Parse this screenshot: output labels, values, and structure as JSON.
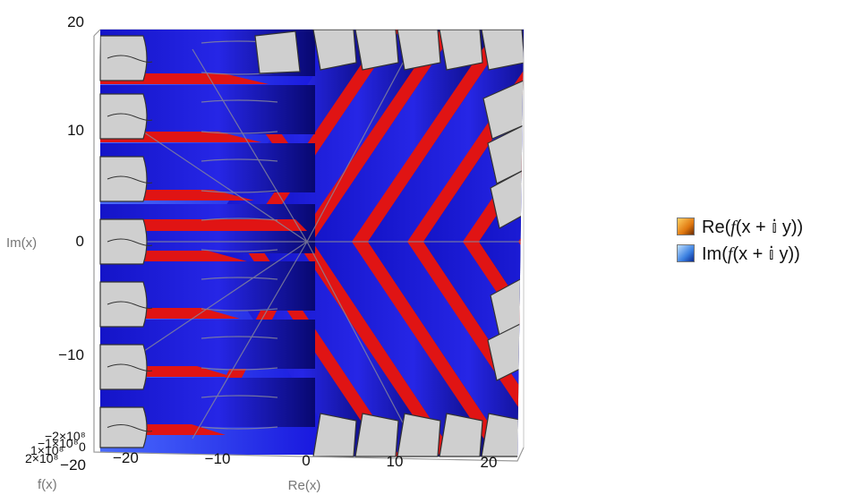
{
  "chart_data": {
    "type": "surface3d",
    "title": "",
    "xlabel": "Re(x)",
    "ylabel": "Im(x)",
    "zlabel": "f(x)",
    "xlim": [
      -22,
      22
    ],
    "ylim": [
      -20,
      20
    ],
    "x_ticks": [
      "−20",
      "−10",
      "0",
      "10",
      "20"
    ],
    "y_ticks": [
      "20",
      "10",
      "0",
      "−10",
      "−20"
    ],
    "z_ticks": [
      "−2×10⁸",
      "−1×10⁸",
      "0",
      "1×10⁸",
      "2×10⁸"
    ],
    "series": [
      {
        "name": "Re(f(x + 𝕚 y))",
        "color": "#f0a020"
      },
      {
        "name": "Im(f(x + 𝕚 y))",
        "color": "#3a7fe0"
      }
    ],
    "surface_colors": {
      "blue": "#1a1adf",
      "red": "#e01414",
      "clipped": "#cfcfcf"
    }
  },
  "legend": {
    "re_prefix": "Re(",
    "re_f": "f",
    "re_rest": "(x + 𝕚 y))",
    "im_prefix": "Im(",
    "im_f": "f",
    "im_rest": "(x + 𝕚 y))"
  }
}
